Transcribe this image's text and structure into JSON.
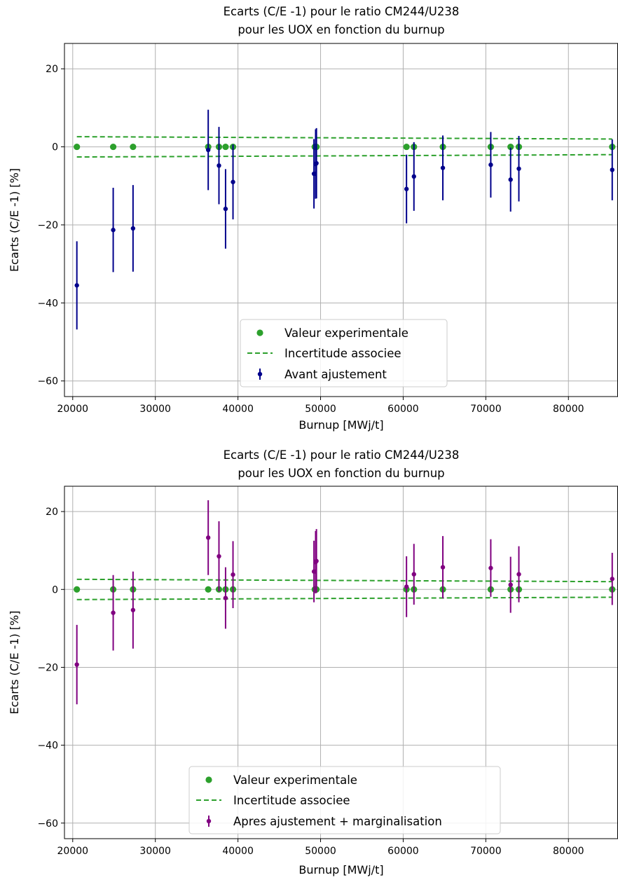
{
  "colors": {
    "experimental": "#2ca02c",
    "avant": "#00008b",
    "apres": "#800080",
    "uncertainty": "#2ca02c",
    "grid": "#b0b0b0"
  },
  "chart_data": [
    {
      "type": "scatter",
      "title_lines": [
        "Ecarts (C/E -1) pour le ratio CM244/U238",
        "pour les UOX en fonction du burnup"
      ],
      "xlabel": "Burnup [MWj/t]",
      "ylabel": "Ecarts (C/E -1) [%]",
      "xlim": [
        19000,
        86000
      ],
      "ylim": [
        -64,
        26.5
      ],
      "xticks": [
        20000,
        30000,
        40000,
        50000,
        60000,
        70000,
        80000
      ],
      "xtick_labels": [
        "20000",
        "30000",
        "40000",
        "50000",
        "60000",
        "70000",
        "80000"
      ],
      "yticks": [
        20,
        0,
        -20,
        -40,
        -60
      ],
      "ytick_labels": [
        "20",
        "0",
        "−20",
        "−40",
        "−60"
      ],
      "grid": true,
      "legend_position": "lower-center",
      "legend": [
        "Valeur experimentale",
        "Incertitude associee",
        "Avant ajustement"
      ],
      "experimental": {
        "x": [
          20500,
          24900,
          27300,
          36400,
          37700,
          38500,
          39400,
          49300,
          49500,
          60400,
          61300,
          64800,
          70600,
          73000,
          74000,
          85300
        ],
        "y": [
          0,
          0,
          0,
          0,
          0,
          0,
          0,
          0,
          0,
          0,
          0,
          0,
          0,
          0,
          0,
          0
        ]
      },
      "uncertainty_band": {
        "x": [
          20500,
          85300
        ],
        "upper": [
          2.6,
          2.0
        ],
        "lower": [
          -2.6,
          -2.0
        ]
      },
      "series": [
        {
          "name": "Avant ajustement",
          "x": [
            20500,
            24900,
            27300,
            36400,
            37700,
            38500,
            39400,
            49200,
            49400,
            49500,
            60400,
            61300,
            64800,
            70600,
            73000,
            74000,
            85300
          ],
          "y": [
            -35.5,
            -21.3,
            -20.9,
            -0.8,
            -4.8,
            -15.9,
            -9.0,
            -6.9,
            -4.4,
            -4.2,
            -10.8,
            -7.6,
            -5.4,
            -4.6,
            -8.4,
            -5.6,
            -5.9
          ],
          "err": [
            11.3,
            10.8,
            11.1,
            10.3,
            9.9,
            10.2,
            9.6,
            8.9,
            8.9,
            9.0,
            8.8,
            8.8,
            8.3,
            8.4,
            8.2,
            8.4,
            7.8
          ]
        }
      ]
    },
    {
      "type": "scatter",
      "title_lines": [
        "Ecarts (C/E -1) pour le ratio CM244/U238",
        "pour les UOX en fonction du burnup"
      ],
      "xlabel": "Burnup [MWj/t]",
      "ylabel": "Ecarts (C/E -1) [%]",
      "xlim": [
        19000,
        86000
      ],
      "ylim": [
        -64,
        26.5
      ],
      "xticks": [
        20000,
        30000,
        40000,
        50000,
        60000,
        70000,
        80000
      ],
      "xtick_labels": [
        "20000",
        "30000",
        "40000",
        "50000",
        "60000",
        "70000",
        "80000"
      ],
      "yticks": [
        20,
        0,
        -20,
        -40,
        -60
      ],
      "ytick_labels": [
        "20",
        "0",
        "−20",
        "−40",
        "−60"
      ],
      "grid": true,
      "legend_position": "lower-center",
      "legend": [
        "Valeur experimentale",
        "Incertitude associee",
        "Apres ajustement + marginalisation"
      ],
      "experimental": {
        "x": [
          20500,
          24900,
          27300,
          36400,
          37700,
          38500,
          39400,
          49300,
          49500,
          60400,
          61300,
          64800,
          70600,
          73000,
          74000,
          85300
        ],
        "y": [
          0,
          0,
          0,
          0,
          0,
          0,
          0,
          0,
          0,
          0,
          0,
          0,
          0,
          0,
          0,
          0
        ]
      },
      "uncertainty_band": {
        "x": [
          20500,
          85300
        ],
        "upper": [
          2.6,
          2.0
        ],
        "lower": [
          -2.6,
          -2.0
        ]
      },
      "series": [
        {
          "name": "Apres ajustement + marginalisation",
          "x": [
            20500,
            24900,
            27300,
            36400,
            37700,
            38500,
            39400,
            49200,
            49400,
            49500,
            60400,
            61300,
            64800,
            70600,
            73000,
            74000,
            85300
          ],
          "y": [
            -19.3,
            -6.0,
            -5.3,
            13.3,
            8.5,
            -2.2,
            3.8,
            4.6,
            7.0,
            7.3,
            0.7,
            3.9,
            5.7,
            5.5,
            1.2,
            3.9,
            2.7
          ],
          "err": [
            10.2,
            9.7,
            9.9,
            9.6,
            9.0,
            7.9,
            8.6,
            7.9,
            8.0,
            8.2,
            7.8,
            7.8,
            8.0,
            7.4,
            7.2,
            7.2,
            6.7
          ]
        }
      ]
    }
  ]
}
